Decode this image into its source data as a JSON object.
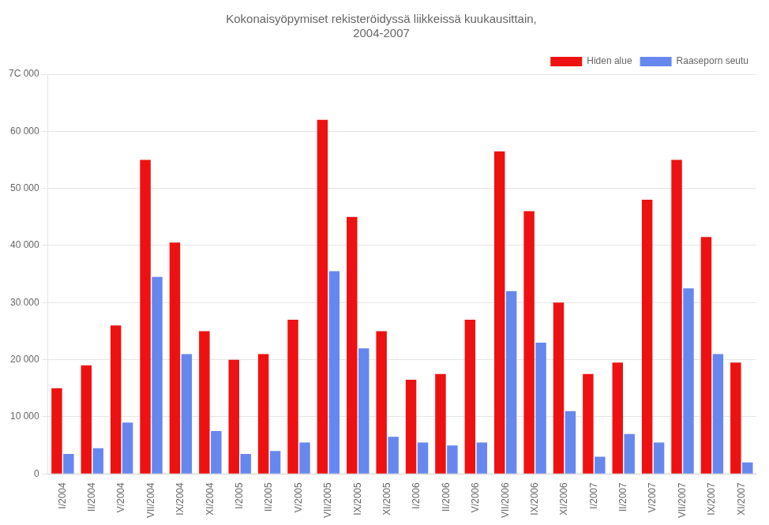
{
  "chart_data": {
    "type": "bar",
    "title": "Kokonaisyöpymiset rekisteröidyssä liikkeissä kuukausittain,\n2004-2007",
    "categories": [
      "I/2004",
      "II/2004",
      "V/2004",
      "VII/2004",
      "IX/2004",
      "XI/2004",
      "I/2005",
      "II/2005",
      "V/2005",
      "VII/2005",
      "IX/2005",
      "XI/2005",
      "I/2006",
      "II/2006",
      "V/2006",
      "VII/2006",
      "IX/2006",
      "XI/2006",
      "I/2007",
      "II/2007",
      "V/2007",
      "VII/2007",
      "IX/2007",
      "XI/2007"
    ],
    "series": [
      {
        "name": "Hiden alue",
        "color": "#EE1111",
        "values": [
          15000,
          19000,
          26000,
          55000,
          40500,
          25000,
          20000,
          21000,
          27000,
          62000,
          45000,
          25000,
          16500,
          17500,
          27000,
          56500,
          46000,
          30000,
          17500,
          19500,
          48000,
          55000,
          41500,
          19500
        ]
      },
      {
        "name": "Raaseporn seutu",
        "color": "#6688EE",
        "values": [
          3500,
          4500,
          9000,
          34500,
          21000,
          7500,
          3500,
          4000,
          5500,
          35500,
          22000,
          6500,
          5500,
          5000,
          5500,
          32000,
          23000,
          11000,
          3000,
          7000,
          5500,
          32500,
          21000,
          2000
        ]
      }
    ],
    "ylim": [
      0,
      70000
    ],
    "yticks": [
      0,
      {
        "value": 10000,
        "label": "10 000"
      },
      {
        "value": 20000,
        "label": "20 000"
      },
      {
        "value": 30000,
        "label": "30 000"
      },
      {
        "value": 40000,
        "label": "40 000"
      },
      {
        "value": 50000,
        "label": "50 000"
      },
      {
        "value": 60000,
        "label": "60 000"
      },
      {
        "value": 70000,
        "label": "7C 000"
      }
    ],
    "grid": true,
    "legend": "upper right"
  }
}
